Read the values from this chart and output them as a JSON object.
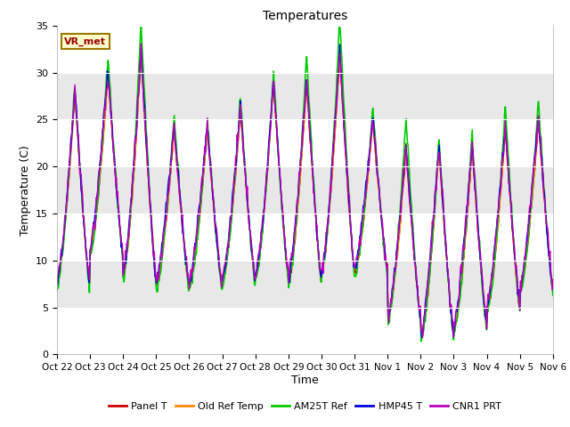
{
  "title": "Temperatures",
  "xlabel": "Time",
  "ylabel": "Temperature (C)",
  "ylim": [
    0,
    35
  ],
  "yticks": [
    0,
    5,
    10,
    15,
    20,
    25,
    30,
    35
  ],
  "plot_bg": "#ffffff",
  "band_color": "#e8e8e8",
  "legend_labels": [
    "Panel T",
    "Old Ref Temp",
    "AM25T Ref",
    "HMP45 T",
    "CNR1 PRT"
  ],
  "line_colors": [
    "#cc0000",
    "#ff8800",
    "#00cc00",
    "#0000dd",
    "#bb00bb"
  ],
  "annotation_text": "VR_met",
  "annotation_color": "#990000",
  "annotation_bg": "#ffffcc",
  "annotation_border": "#997700",
  "x_tick_labels": [
    "Oct 22",
    "Oct 23",
    "Oct 24",
    "Oct 25",
    "Oct 26",
    "Oct 27",
    "Oct 28",
    "Oct 29",
    "Oct 30",
    "Oct 31",
    "Nov 1",
    "Nov 2",
    "Nov 3",
    "Nov 4",
    "Nov 5",
    "Nov 6"
  ],
  "n_days": 15,
  "samples_per_day": 48
}
